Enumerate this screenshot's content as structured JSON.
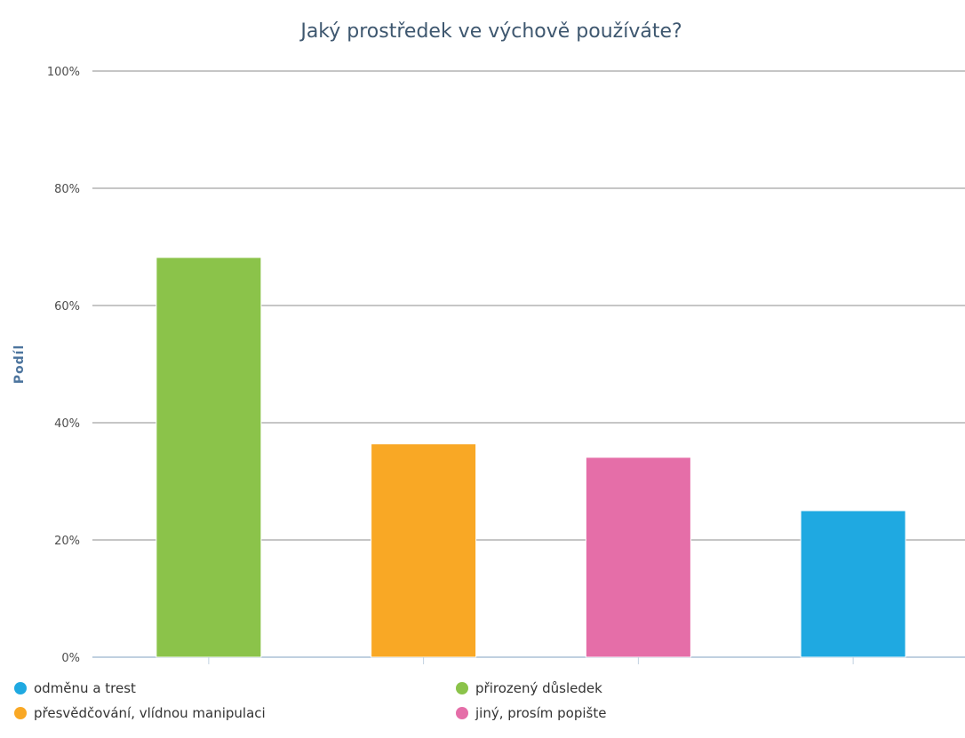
{
  "chart_data": {
    "type": "bar",
    "title": "Jaký prostředek ve výchově používáte?",
    "ylabel": "Podíl",
    "xlabel": "",
    "ylim": [
      0,
      100
    ],
    "yticks": [
      "0%",
      "20%",
      "40%",
      "60%",
      "80%",
      "100%"
    ],
    "ytick_values": [
      0,
      20,
      40,
      60,
      80,
      100
    ],
    "grid": true,
    "legend_position": "bottom",
    "bars": [
      {
        "label": "přirozený důsledek",
        "value": 68.2,
        "color": "#8bc34a"
      },
      {
        "label": "přesvědčování, vlídnou manipulaci",
        "value": 36.4,
        "color": "#f9a825"
      },
      {
        "label": "jiný, prosím popište",
        "value": 34.1,
        "color": "#e56ea8"
      },
      {
        "label": "odměnu a trest",
        "value": 25.0,
        "color": "#1fa9e1"
      }
    ],
    "legend": [
      {
        "label": "odměnu a trest",
        "color": "#1fa9e1"
      },
      {
        "label": "přirozený důsledek",
        "color": "#8bc34a"
      },
      {
        "label": "přesvědčování, vlídnou manipulaci",
        "color": "#f9a825"
      },
      {
        "label": "jiný, prosím popište",
        "color": "#e56ea8"
      }
    ]
  }
}
